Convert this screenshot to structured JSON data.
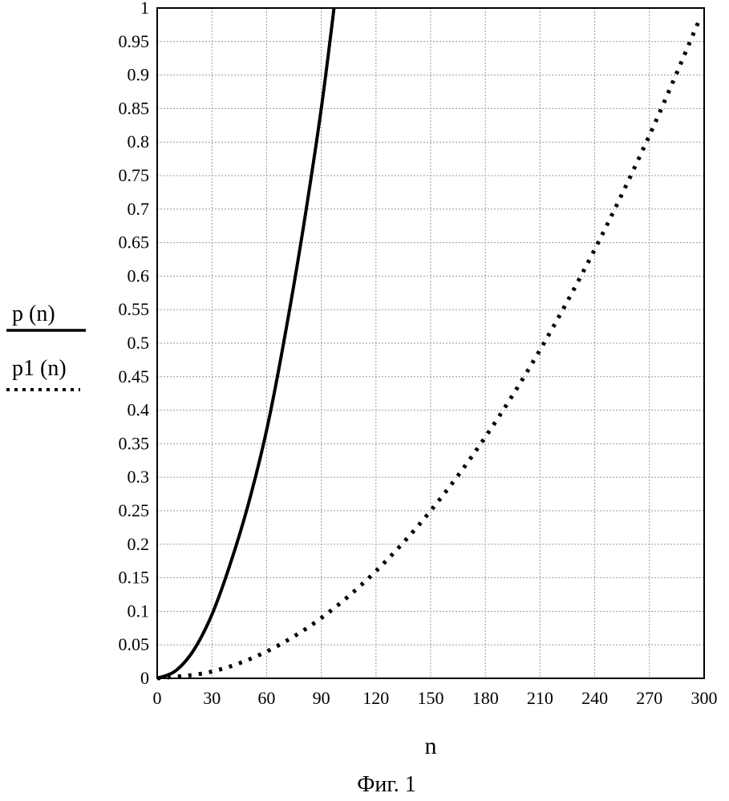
{
  "chart_data": {
    "type": "line",
    "title": "",
    "xlabel": "n",
    "ylabel": "",
    "caption": "Фиг. 1",
    "xlim": [
      0,
      300
    ],
    "ylim": [
      0,
      1
    ],
    "grid": true,
    "x_ticks": [
      "0",
      "30",
      "60",
      "90",
      "120",
      "150",
      "180",
      "210",
      "240",
      "270",
      "300"
    ],
    "y_ticks": [
      "0",
      "0.05",
      "0.1",
      "0.15",
      "0.2",
      "0.25",
      "0.3",
      "0.35",
      "0.4",
      "0.45",
      "0.5",
      "0.55",
      "0.6",
      "0.65",
      "0.7",
      "0.75",
      "0.8",
      "0.85",
      "0.9",
      "0.95",
      "1"
    ],
    "legend_position": "left",
    "series": [
      {
        "name": "p (n)",
        "style": "solid",
        "color": "#000000",
        "x": [
          0,
          10,
          20,
          30,
          40,
          50,
          60,
          70,
          80,
          90,
          97
        ],
        "y": [
          0,
          0.011,
          0.042,
          0.095,
          0.17,
          0.26,
          0.37,
          0.51,
          0.67,
          0.85,
          1.0
        ]
      },
      {
        "name": "p1 (n)",
        "style": "dotted",
        "color": "#000000",
        "x": [
          0,
          30,
          60,
          90,
          120,
          150,
          180,
          210,
          240,
          270,
          297
        ],
        "y": [
          0,
          0.01,
          0.04,
          0.09,
          0.16,
          0.25,
          0.36,
          0.49,
          0.64,
          0.81,
          0.98
        ]
      }
    ]
  }
}
